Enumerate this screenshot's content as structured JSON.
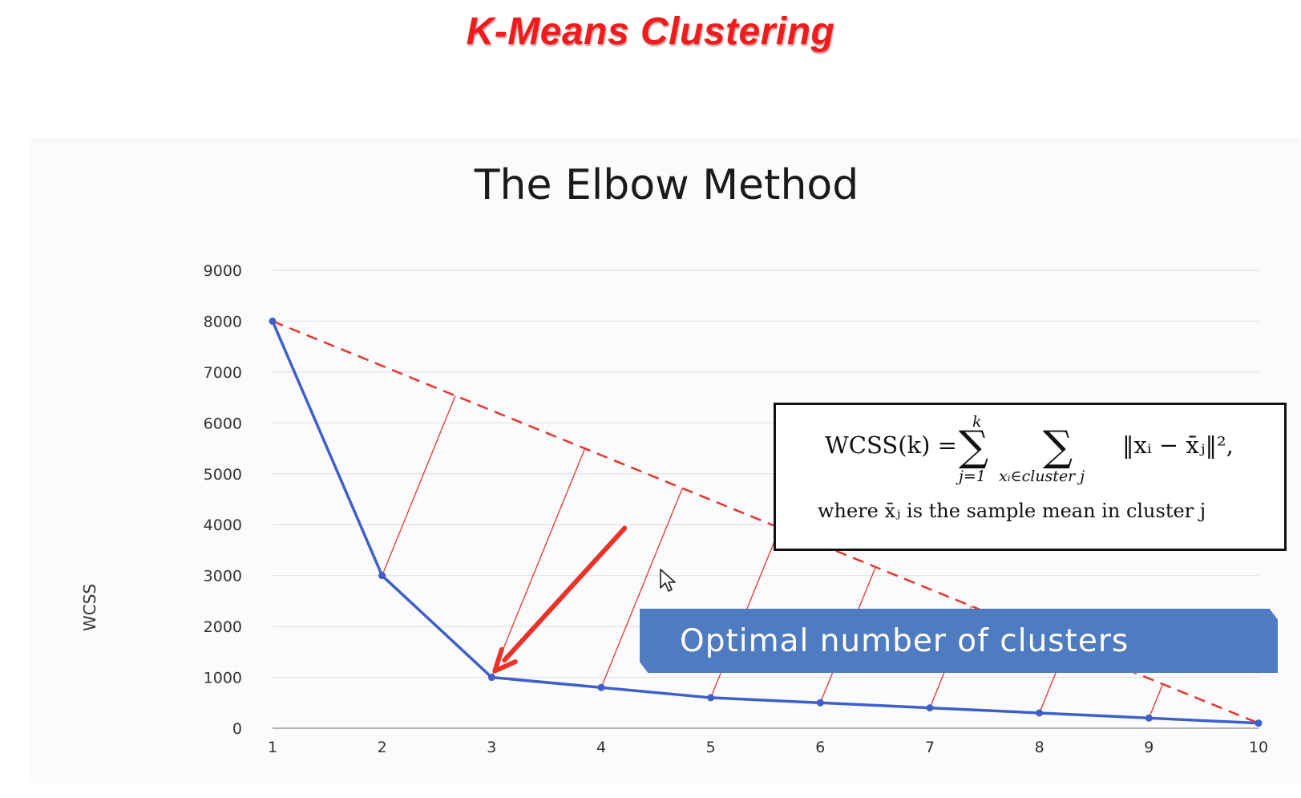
{
  "page": {
    "title": "K-Means Clustering"
  },
  "slide": {
    "title": "The Elbow Method",
    "formula": {
      "lhs": "WCSS(k) =",
      "sum1_upper": "k",
      "sum1_lower": "j=1",
      "sum2_lower": "xᵢ∈cluster j",
      "term": "‖xᵢ − x̄ⱼ‖²,",
      "note": "where x̄ⱼ is the sample mean in cluster j"
    },
    "callout": "Optimal number of clusters"
  },
  "chart_data": {
    "type": "line",
    "title": "",
    "xlabel": "",
    "ylabel": "WCSS",
    "x": [
      1,
      2,
      3,
      4,
      5,
      6,
      7,
      8,
      9,
      10
    ],
    "y": [
      8000,
      3000,
      1000,
      800,
      600,
      500,
      400,
      300,
      200,
      100
    ],
    "ylim": [
      0,
      9000
    ],
    "yticks": [
      0,
      1000,
      2000,
      3000,
      4000,
      5000,
      6000,
      7000,
      8000,
      9000
    ],
    "grid": true,
    "annotations": {
      "reference_line": {
        "from": [
          1,
          8000
        ],
        "to": [
          10,
          100
        ],
        "style": "dashed",
        "color": "#e8332a"
      },
      "distance_lines": "perpendicular lines from each point to the reference line",
      "optimal_k": 3
    },
    "colors": {
      "series": "#3f5fc8",
      "annotation": "#e8332a",
      "grid": "#e3e3e3"
    }
  }
}
